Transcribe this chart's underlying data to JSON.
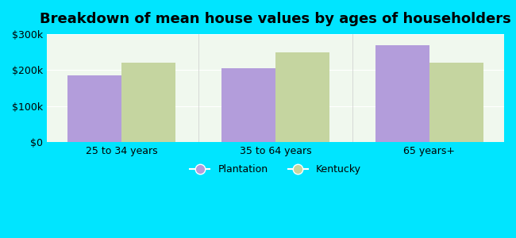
{
  "title": "Breakdown of mean house values by ages of householders",
  "categories": [
    "25 to 34 years",
    "35 to 64 years",
    "65 years+"
  ],
  "plantation_values": [
    185000,
    205000,
    270000
  ],
  "kentucky_values": [
    220000,
    250000,
    220000
  ],
  "plantation_color": "#b39ddb",
  "kentucky_color": "#c5d5a0",
  "background_outer": "#00e5ff",
  "background_inner": "#f0f8ee",
  "ylim": [
    0,
    300000
  ],
  "yticks": [
    0,
    100000,
    200000,
    300000
  ],
  "ytick_labels": [
    "$0",
    "$100k",
    "$200k",
    "$300k"
  ],
  "legend_labels": [
    "Plantation",
    "Kentucky"
  ],
  "bar_width": 0.35,
  "title_fontsize": 13,
  "tick_fontsize": 9,
  "legend_fontsize": 9
}
